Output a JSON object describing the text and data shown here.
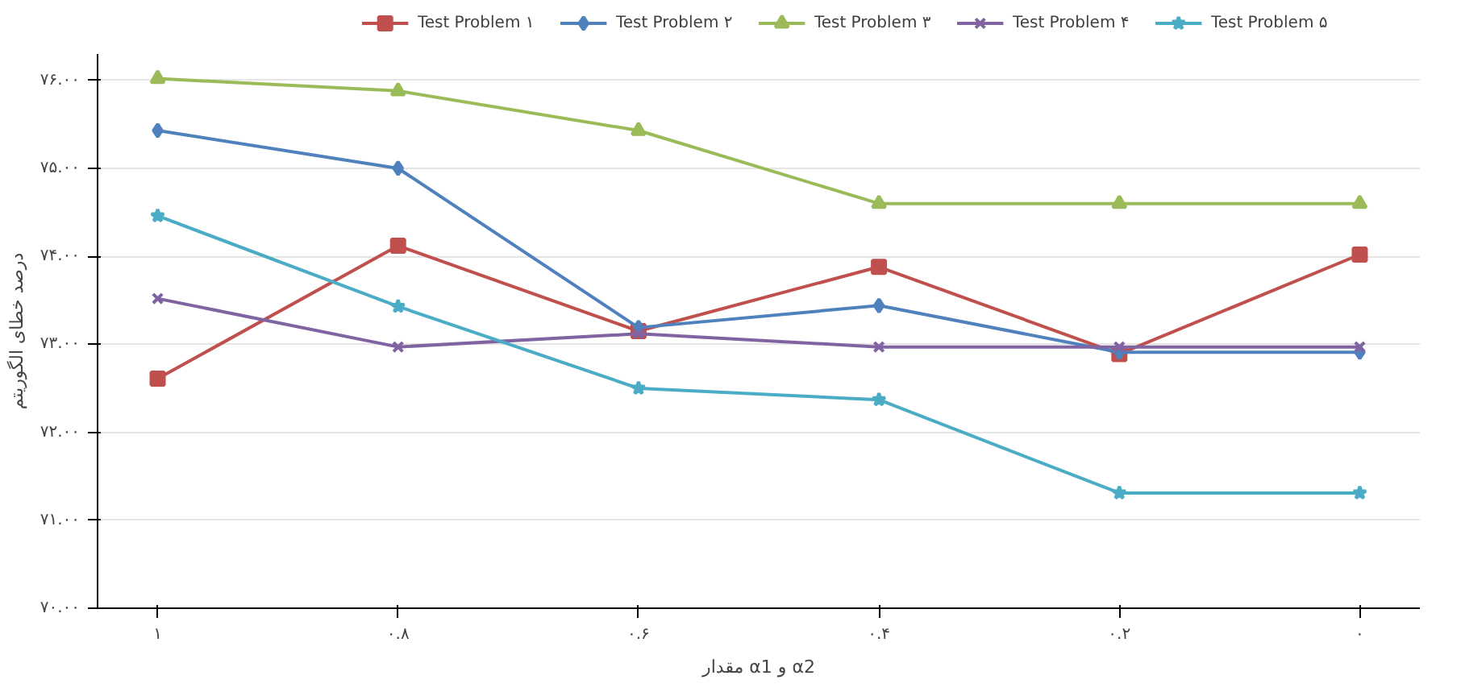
{
  "chart_data": {
    "type": "line",
    "xlabel": "مقدار α1 و α2",
    "ylabel": "درصد خطای الگوریتم",
    "categories": [
      "۱",
      "۰.۸",
      "۰.۶",
      "۰.۴",
      "۰.۲",
      "۰"
    ],
    "ylim": [
      70,
      76.3
    ],
    "yticks": [
      {
        "value": 70,
        "label": "۷۰.۰۰"
      },
      {
        "value": 71,
        "label": "۷۱.۰۰"
      },
      {
        "value": 72,
        "label": "۷۲.۰۰"
      },
      {
        "value": 73,
        "label": "۷۳.۰۰"
      },
      {
        "value": 74,
        "label": "۷۴.۰۰"
      },
      {
        "value": 75,
        "label": "۷۵.۰۰"
      },
      {
        "value": 76,
        "label": "۷۶.۰۰"
      }
    ],
    "grid": "y",
    "legend": "top",
    "series": [
      {
        "name": "Test Problem ۱",
        "color": "#c0504d",
        "marker": "square",
        "values": [
          72.61,
          74.12,
          73.15,
          73.88,
          72.89,
          74.02
        ]
      },
      {
        "name": "Test Problem ۲",
        "color": "#4f81bd",
        "marker": "diamond",
        "values": [
          75.43,
          75.0,
          73.19,
          73.44,
          72.91,
          72.91
        ]
      },
      {
        "name": "Test Problem ۳",
        "color": "#9bbb59",
        "marker": "triangle",
        "values": [
          76.02,
          75.88,
          75.43,
          74.6,
          74.6,
          74.6
        ]
      },
      {
        "name": "Test Problem ۴",
        "color": "#8064a2",
        "marker": "cross",
        "values": [
          73.52,
          72.97,
          73.12,
          72.97,
          72.97,
          72.97
        ]
      },
      {
        "name": "Test Problem ۵",
        "color": "#4bacc6",
        "marker": "star",
        "values": [
          74.46,
          73.43,
          72.5,
          72.37,
          71.31,
          71.31
        ]
      }
    ]
  }
}
